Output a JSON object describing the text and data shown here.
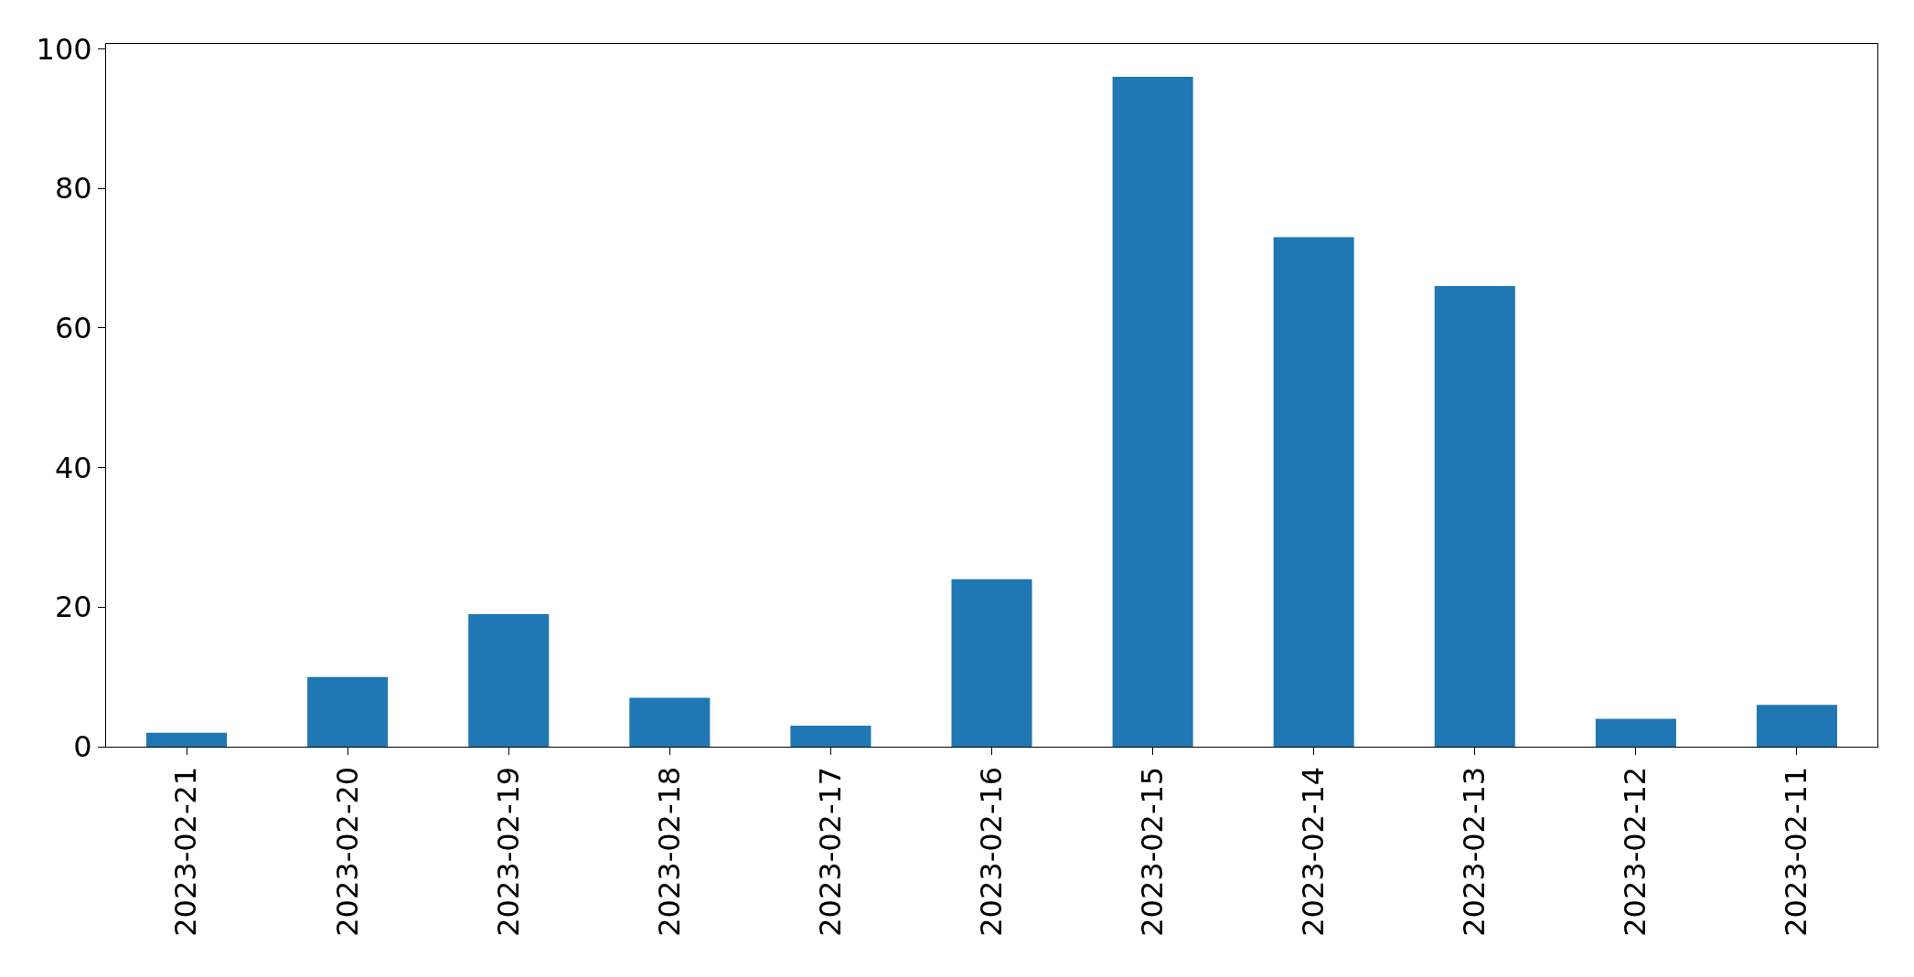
{
  "chart_data": {
    "type": "bar",
    "categories": [
      "2023-02-21",
      "2023-02-20",
      "2023-02-19",
      "2023-02-18",
      "2023-02-17",
      "2023-02-16",
      "2023-02-15",
      "2023-02-14",
      "2023-02-13",
      "2023-02-12",
      "2023-02-11"
    ],
    "values": [
      2,
      10,
      19,
      7,
      3,
      24,
      96,
      73,
      66,
      4,
      6
    ],
    "color": "#1f77b4",
    "ylim": [
      0,
      100.7
    ],
    "yticks": [
      0,
      20,
      40,
      60,
      80,
      100
    ],
    "grid": false
  }
}
